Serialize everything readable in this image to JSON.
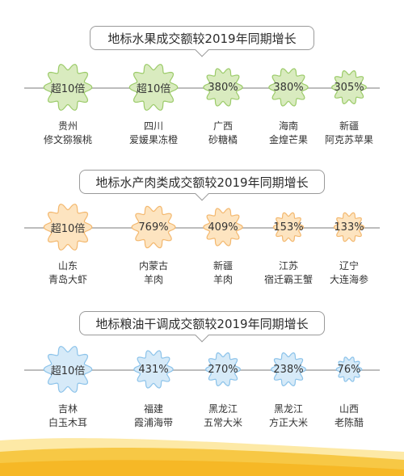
{
  "sections": [
    {
      "title": "地标水果成交额较2019年同期增长",
      "colors": {
        "fill": "#d9ebbf",
        "stroke": "#9ccb6a"
      },
      "items": [
        {
          "value": "超10倍",
          "region": "贵州",
          "product": "修文猕猴桃",
          "level": 5
        },
        {
          "value": "超10倍",
          "region": "四川",
          "product": "爱媛果冻橙",
          "level": 5
        },
        {
          "value": "380%",
          "region": "广西",
          "product": "砂糖橘",
          "level": 3
        },
        {
          "value": "380%",
          "region": "海南",
          "product": "金煌芒果",
          "level": 3
        },
        {
          "value": "305%",
          "region": "新疆",
          "product": "阿克苏苹果",
          "level": 2
        }
      ]
    },
    {
      "title": "地标水产肉类成交额较2019年同期增长",
      "colors": {
        "fill": "#fde4c0",
        "stroke": "#f3b86f"
      },
      "items": [
        {
          "value": "超10倍",
          "region": "山东",
          "product": "青岛大虾",
          "level": 5
        },
        {
          "value": "769%",
          "region": "内蒙古",
          "product": "羊肉",
          "level": 4
        },
        {
          "value": "409%",
          "region": "新疆",
          "product": "羊肉",
          "level": 3
        },
        {
          "value": "153%",
          "region": "江苏",
          "product": "宿迁霸王蟹",
          "level": 1
        },
        {
          "value": "133%",
          "region": "辽宁",
          "product": "大连海参",
          "level": 1
        }
      ]
    },
    {
      "title": "地标粮油干调成交额较2019年同期增长",
      "colors": {
        "fill": "#d6eaf8",
        "stroke": "#8cc3ea"
      },
      "items": [
        {
          "value": "超10倍",
          "region": "吉林",
          "product": "白玉木耳",
          "level": 5
        },
        {
          "value": "431%",
          "region": "福建",
          "product": "霞浦海带",
          "level": 3
        },
        {
          "value": "270%",
          "region": "黑龙江",
          "product": "五常大米",
          "level": 2
        },
        {
          "value": "238%",
          "region": "黑龙江",
          "product": "方正大米",
          "level": 2
        },
        {
          "value": "76%",
          "region": "山西",
          "product": "老陈醋",
          "level": 0
        }
      ]
    }
  ],
  "footer_colors": [
    "#fde9a6",
    "#f7c845",
    "#f6b826"
  ]
}
